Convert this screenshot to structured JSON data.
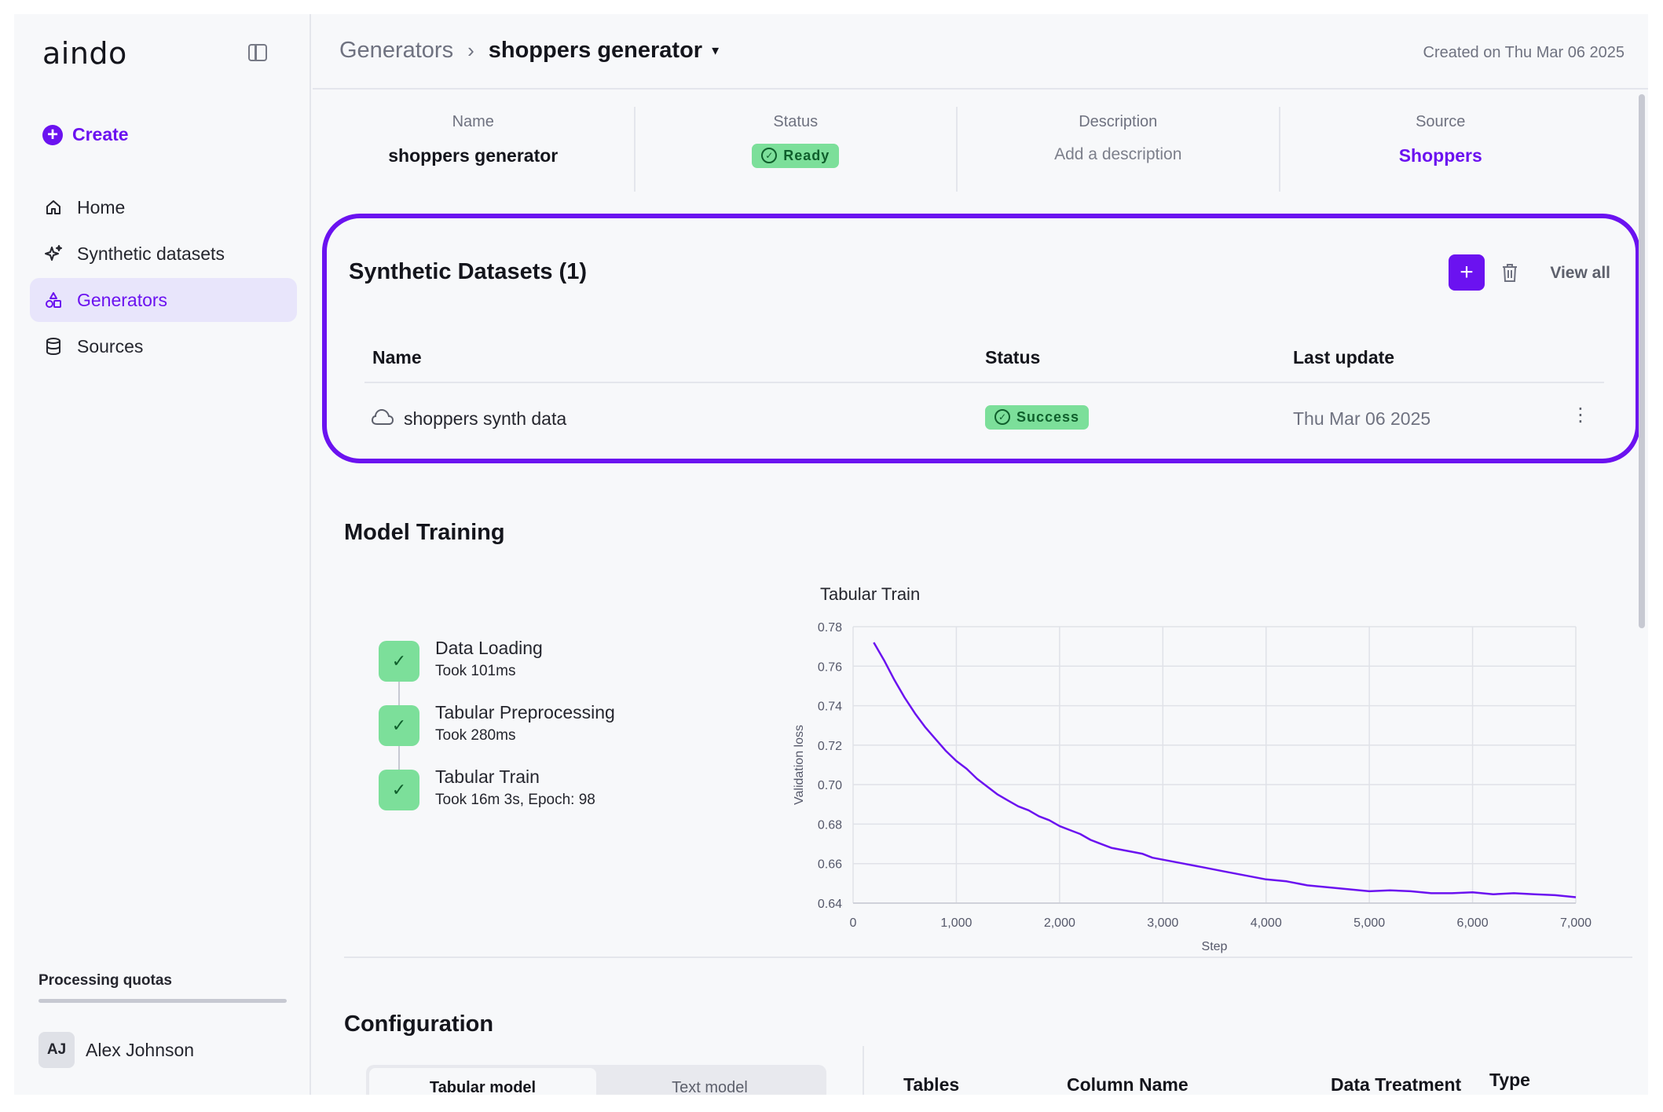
{
  "app": {
    "logo": "aindo"
  },
  "sidebar": {
    "create_label": "Create",
    "items": [
      {
        "label": "Home",
        "icon": "home-icon",
        "active": false
      },
      {
        "label": "Synthetic datasets",
        "icon": "sparkle-icon",
        "active": false
      },
      {
        "label": "Generators",
        "icon": "shapes-icon",
        "active": true
      },
      {
        "label": "Sources",
        "icon": "database-icon",
        "active": false
      }
    ],
    "quota_label": "Processing quotas",
    "quota_fraction": 0.0,
    "user": {
      "initials": "AJ",
      "name": "Alex Johnson"
    }
  },
  "header": {
    "breadcrumb_root": "Generators",
    "breadcrumb_current": "shoppers generator",
    "created": "Created on Thu Mar 06 2025"
  },
  "info": {
    "name_label": "Name",
    "name_value": "shoppers generator",
    "status_label": "Status",
    "status_value": "Ready",
    "description_label": "Description",
    "description_value": "Add a description",
    "source_label": "Source",
    "source_value": "Shoppers"
  },
  "datasets": {
    "title": "Synthetic Datasets (1)",
    "view_all": "View all",
    "columns": {
      "name": "Name",
      "status": "Status",
      "last_update": "Last update"
    },
    "rows": [
      {
        "name": "shoppers synth data",
        "status": "Success",
        "last_update": "Thu Mar 06 2025"
      }
    ]
  },
  "training": {
    "title": "Model Training",
    "steps": [
      {
        "name": "Data Loading",
        "detail": "Took 101ms"
      },
      {
        "name": "Tabular Preprocessing",
        "detail": "Took 280ms"
      },
      {
        "name": "Tabular Train",
        "detail": "Took 16m 3s, Epoch: 98"
      }
    ]
  },
  "chart_data": {
    "type": "line",
    "title": "Tabular Train",
    "xlabel": "Step",
    "ylabel": "Validation loss",
    "xlim": [
      0,
      7000
    ],
    "ylim": [
      0.64,
      0.78
    ],
    "xticks": [
      "0",
      "1,000",
      "2,000",
      "3,000",
      "4,000",
      "5,000",
      "6,000",
      "7,000"
    ],
    "yticks": [
      "0.64",
      "0.66",
      "0.68",
      "0.70",
      "0.72",
      "0.74",
      "0.76",
      "0.78"
    ],
    "grid": true,
    "color": "#6b12f0",
    "series": [
      {
        "x": [
          200,
          300,
          400,
          500,
          600,
          700,
          800,
          900,
          1000,
          1100,
          1200,
          1300,
          1400,
          1500,
          1600,
          1700,
          1800,
          1900,
          2000,
          2100,
          2200,
          2300,
          2400,
          2500,
          2600,
          2700,
          2800,
          2900,
          3000,
          3200,
          3400,
          3600,
          3800,
          4000,
          4200,
          4400,
          4600,
          4800,
          5000,
          5200,
          5400,
          5600,
          5800,
          6000,
          6200,
          6400,
          6600,
          6800,
          7000
        ],
        "y": [
          0.772,
          0.763,
          0.753,
          0.744,
          0.736,
          0.729,
          0.723,
          0.717,
          0.712,
          0.708,
          0.703,
          0.699,
          0.695,
          0.692,
          0.689,
          0.687,
          0.684,
          0.682,
          0.679,
          0.677,
          0.675,
          0.672,
          0.67,
          0.668,
          0.667,
          0.666,
          0.665,
          0.663,
          0.662,
          0.66,
          0.658,
          0.656,
          0.654,
          0.652,
          0.651,
          0.649,
          0.648,
          0.647,
          0.646,
          0.6465,
          0.646,
          0.645,
          0.645,
          0.6455,
          0.6445,
          0.645,
          0.6445,
          0.644,
          0.643
        ]
      }
    ]
  },
  "config": {
    "title": "Configuration",
    "tabs": [
      {
        "label": "Tabular model",
        "active": true
      },
      {
        "label": "Text model",
        "active": false
      }
    ],
    "columns": {
      "tables": "Tables",
      "column_name": "Column Name",
      "data_treatment": "Data Treatment",
      "type": "Type"
    }
  }
}
